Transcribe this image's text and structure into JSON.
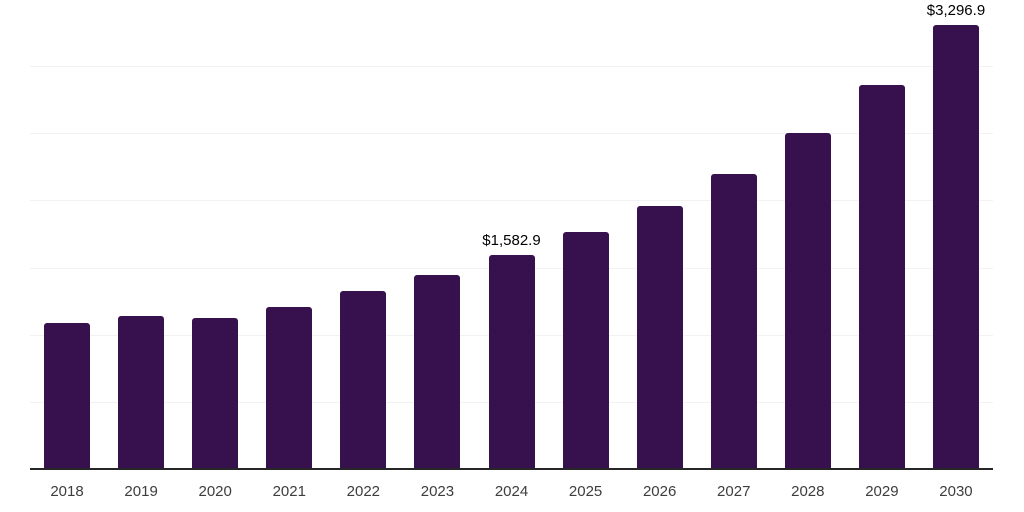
{
  "chart_data": {
    "type": "bar",
    "categories": [
      "2018",
      "2019",
      "2020",
      "2021",
      "2022",
      "2023",
      "2024",
      "2025",
      "2026",
      "2027",
      "2028",
      "2029",
      "2030"
    ],
    "values": [
      1080,
      1135,
      1120,
      1200,
      1315,
      1435,
      1582.9,
      1757,
      1953,
      2188,
      2495,
      2855,
      3296.9
    ],
    "value_labels": [
      {
        "category": "2024",
        "text": "$1,582.9"
      },
      {
        "category": "2030",
        "text": "$3,296.9"
      }
    ],
    "ylim": [
      0,
      3500
    ],
    "gridline_step": 500,
    "grid": "on",
    "legend": "none",
    "xlabel": "",
    "ylabel": "",
    "colors": {
      "bar": "#36114d",
      "axis_line": "#262626",
      "gridline": "#f2f2f2",
      "tick_label": "#3d3d3d",
      "value_label": "#000000",
      "background": "#ffffff"
    }
  }
}
